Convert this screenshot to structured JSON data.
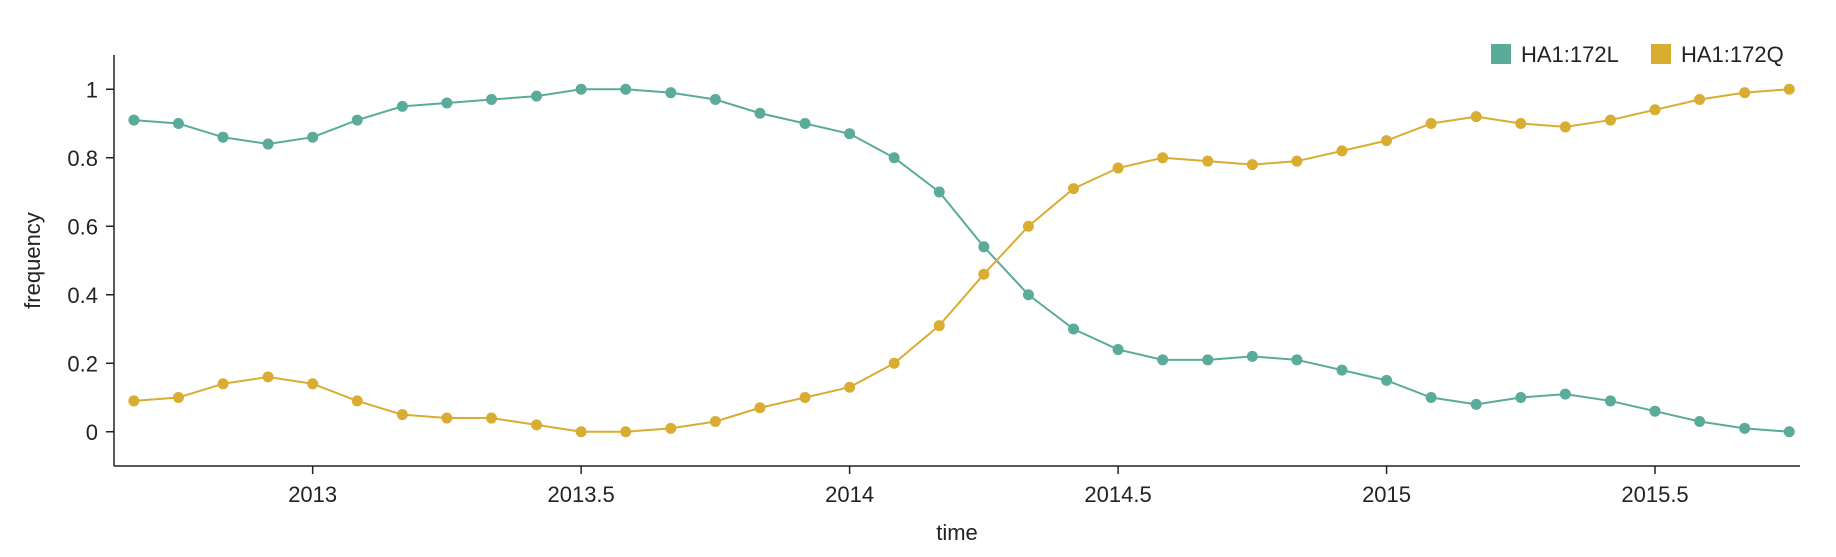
{
  "chart_data": {
    "type": "line",
    "title": "",
    "xlabel": "time",
    "ylabel": "frequency",
    "xlim": [
      2012.63,
      2015.77
    ],
    "ylim": [
      -0.1,
      1.1
    ],
    "x_ticks": [
      2013,
      2013.5,
      2014,
      2014.5,
      2015,
      2015.5
    ],
    "x_tick_labels": [
      "2013",
      "2013.5",
      "2014",
      "2014.5",
      "2015",
      "2015.5"
    ],
    "y_ticks": [
      0,
      0.2,
      0.4,
      0.6,
      0.8,
      1
    ],
    "y_tick_labels": [
      "0",
      "0.2",
      "0.4",
      "0.6",
      "0.8",
      "1"
    ],
    "grid": false,
    "legend_position": "top-right",
    "x": [
      2012.667,
      2012.75,
      2012.833,
      2012.917,
      2013.0,
      2013.083,
      2013.167,
      2013.25,
      2013.333,
      2013.417,
      2013.5,
      2013.583,
      2013.667,
      2013.75,
      2013.833,
      2013.917,
      2014.0,
      2014.083,
      2014.167,
      2014.25,
      2014.333,
      2014.417,
      2014.5,
      2014.583,
      2014.667,
      2014.75,
      2014.833,
      2014.917,
      2015.0,
      2015.083,
      2015.167,
      2015.25,
      2015.333,
      2015.417,
      2015.5,
      2015.583,
      2015.667,
      2015.75
    ],
    "series": [
      {
        "name": "HA1:172L",
        "color": "#5aab9a",
        "values": [
          0.91,
          0.9,
          0.86,
          0.84,
          0.86,
          0.91,
          0.95,
          0.96,
          0.97,
          0.98,
          1.0,
          1.0,
          0.99,
          0.97,
          0.93,
          0.9,
          0.87,
          0.8,
          0.7,
          0.54,
          0.4,
          0.3,
          0.24,
          0.21,
          0.21,
          0.22,
          0.21,
          0.18,
          0.15,
          0.1,
          0.08,
          0.1,
          0.11,
          0.09,
          0.06,
          0.03,
          0.01,
          0.0
        ]
      },
      {
        "name": "HA1:172Q",
        "color": "#d9ac32",
        "values": [
          0.09,
          0.1,
          0.14,
          0.16,
          0.14,
          0.09,
          0.05,
          0.04,
          0.04,
          0.02,
          0.0,
          0.0,
          0.01,
          0.03,
          0.07,
          0.1,
          0.13,
          0.2,
          0.31,
          0.46,
          0.6,
          0.71,
          0.77,
          0.8,
          0.79,
          0.78,
          0.79,
          0.82,
          0.85,
          0.9,
          0.92,
          0.9,
          0.89,
          0.91,
          0.94,
          0.97,
          0.99,
          1.0
        ]
      }
    ]
  }
}
